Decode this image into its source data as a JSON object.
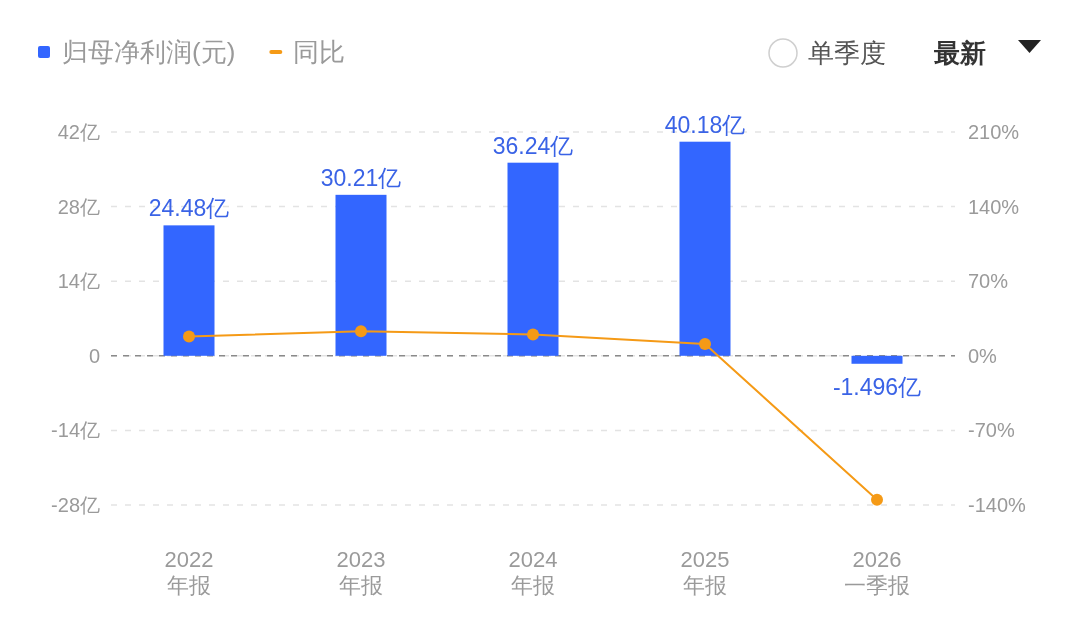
{
  "chart_data": {
    "type": "bar",
    "categories": [
      "2022\n年报",
      "2023\n年报",
      "2024\n年报",
      "2025\n年报",
      "2026\n一季报"
    ],
    "series": [
      {
        "name": "归母净利润(元)",
        "color": "#3366ff",
        "values": [
          24.48,
          30.21,
          36.24,
          40.18,
          -1.496
        ],
        "value_labels": [
          "24.48亿",
          "30.21亿",
          "36.24亿",
          "40.18亿",
          "-1.496亿"
        ]
      },
      {
        "name": "同比",
        "type": "line",
        "axis": "y2",
        "color": "#f59a16",
        "values": [
          18,
          23,
          20,
          11,
          -135
        ]
      }
    ],
    "ylim": [
      -28,
      42
    ],
    "yticks": [
      {
        "value": -28,
        "label": "-28亿"
      },
      {
        "value": -14,
        "label": "-14亿"
      },
      0,
      {
        "value": 14,
        "label": "14亿"
      },
      {
        "value": 28,
        "label": "28亿"
      },
      {
        "value": 42,
        "label": "42亿"
      }
    ],
    "y2lim": [
      -140,
      210
    ],
    "y2ticks": [
      {
        "value": -140,
        "label": "-140%"
      },
      {
        "value": -70,
        "label": "-70%"
      },
      {
        "value": 0,
        "label": "0%"
      },
      {
        "value": 70,
        "label": "70%"
      },
      {
        "value": 140,
        "label": "140%"
      },
      {
        "value": 210,
        "label": "210%"
      }
    ],
    "ref_lines": [
      {
        "axis": "y",
        "value": 0,
        "color": "#8a8a8a",
        "line_style": "dashed"
      }
    ],
    "grid": "y",
    "legend": "top left",
    "marker": "circle",
    "line_style": "solid",
    "annotations": [
      "单季度",
      "最新"
    ]
  }
}
